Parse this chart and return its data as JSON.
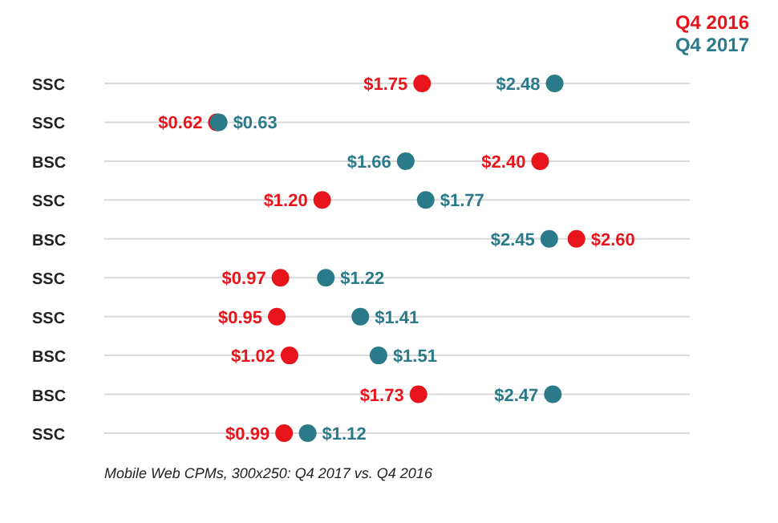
{
  "chart_data": {
    "type": "scatter",
    "orientation": "horizontal",
    "categories": [
      "SSC",
      "SSC",
      "BSC",
      "SSC",
      "BSC",
      "SSC",
      "SSC",
      "BSC",
      "BSC",
      "SSC"
    ],
    "series": [
      {
        "name": "Q4 2016",
        "color": "#e8141b",
        "values": [
          1.75,
          0.62,
          2.4,
          1.2,
          2.6,
          0.97,
          0.95,
          1.02,
          1.73,
          0.99
        ],
        "value_labels": [
          "$1.75",
          "$0.62",
          "$2.40",
          "$1.20",
          "$2.60",
          "$0.97",
          "$0.95",
          "$1.02",
          "$1.73",
          "$0.99"
        ]
      },
      {
        "name": "Q4 2017",
        "color": "#2b7a8a",
        "values": [
          2.48,
          0.63,
          1.66,
          1.77,
          2.45,
          1.22,
          1.41,
          1.51,
          2.47,
          1.12
        ],
        "value_labels": [
          "$2.48",
          "$0.63",
          "$1.66",
          "$1.77",
          "$2.45",
          "$1.22",
          "$1.41",
          "$1.51",
          "$2.47",
          "$1.12"
        ]
      }
    ],
    "marker": "circle",
    "grid": "y",
    "legend": "top right",
    "annotations": [
      "Mobile Web CPMs, 300x250: Q4 2017 vs. Q4 2016"
    ]
  }
}
